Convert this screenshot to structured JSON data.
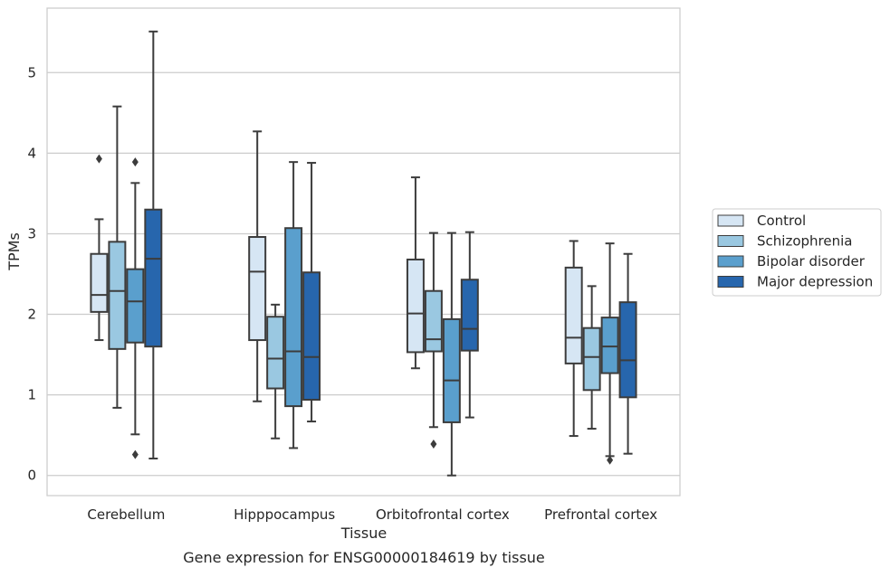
{
  "caption": "Gene expression for ENSG00000184619 by tissue",
  "colors": {
    "Control": "#d6e6f4",
    "Schizophrenia": "#9ac8e1",
    "Bipolar disorder": "#5a9fcd",
    "Major depression": "#2766ad",
    "box_edge": "#3c3c3c",
    "grid": "#cccccc",
    "frame": "#cccccc"
  },
  "chart_data": {
    "type": "boxplot",
    "xlabel": "Tissue",
    "ylabel": "TPMs",
    "ylim": [
      -0.25,
      5.8
    ],
    "yticks": [
      0,
      1,
      2,
      3,
      4,
      5
    ],
    "grid": "horizontal",
    "legend_position": "right",
    "categories": [
      "Cerebellum",
      "Hipppocampus",
      "Orbitofrontal cortex",
      "Prefrontal cortex"
    ],
    "series": [
      {
        "name": "Control",
        "boxes": [
          {
            "whislo": 1.68,
            "q1": 2.03,
            "med": 2.24,
            "q3": 2.75,
            "whishi": 3.18,
            "fliers": [
              3.93
            ]
          },
          {
            "whislo": 0.92,
            "q1": 1.68,
            "med": 2.53,
            "q3": 2.96,
            "whishi": 4.27,
            "fliers": []
          },
          {
            "whislo": 1.33,
            "q1": 1.53,
            "med": 2.01,
            "q3": 2.68,
            "whishi": 3.7,
            "fliers": []
          },
          {
            "whislo": 0.49,
            "q1": 1.39,
            "med": 1.71,
            "q3": 2.58,
            "whishi": 2.91,
            "fliers": []
          }
        ]
      },
      {
        "name": "Schizophrenia",
        "boxes": [
          {
            "whislo": 0.84,
            "q1": 1.57,
            "med": 2.29,
            "q3": 2.9,
            "whishi": 4.58,
            "fliers": []
          },
          {
            "whislo": 0.46,
            "q1": 1.08,
            "med": 1.45,
            "q3": 1.97,
            "whishi": 2.12,
            "fliers": []
          },
          {
            "whislo": 0.6,
            "q1": 1.54,
            "med": 1.69,
            "q3": 2.29,
            "whishi": 3.01,
            "fliers": [
              0.39
            ]
          },
          {
            "whislo": 0.58,
            "q1": 1.06,
            "med": 1.47,
            "q3": 1.83,
            "whishi": 2.35,
            "fliers": []
          }
        ]
      },
      {
        "name": "Bipolar disorder",
        "boxes": [
          {
            "whislo": 0.51,
            "q1": 1.65,
            "med": 2.16,
            "q3": 2.56,
            "whishi": 3.63,
            "fliers": [
              3.89,
              0.26
            ]
          },
          {
            "whislo": 0.34,
            "q1": 0.86,
            "med": 1.54,
            "q3": 3.07,
            "whishi": 3.89,
            "fliers": []
          },
          {
            "whislo": 0.0,
            "q1": 0.66,
            "med": 1.18,
            "q3": 1.94,
            "whishi": 3.01,
            "fliers": []
          },
          {
            "whislo": 0.24,
            "q1": 1.27,
            "med": 1.6,
            "q3": 1.96,
            "whishi": 2.88,
            "fliers": [
              0.19
            ]
          }
        ]
      },
      {
        "name": "Major depression",
        "boxes": [
          {
            "whislo": 0.21,
            "q1": 1.6,
            "med": 2.69,
            "q3": 3.3,
            "whishi": 5.51,
            "fliers": []
          },
          {
            "whislo": 0.67,
            "q1": 0.94,
            "med": 1.47,
            "q3": 2.52,
            "whishi": 3.88,
            "fliers": []
          },
          {
            "whislo": 0.72,
            "q1": 1.55,
            "med": 1.82,
            "q3": 2.43,
            "whishi": 3.02,
            "fliers": []
          },
          {
            "whislo": 0.27,
            "q1": 0.97,
            "med": 1.43,
            "q3": 2.15,
            "whishi": 2.75,
            "fliers": []
          }
        ]
      }
    ]
  }
}
